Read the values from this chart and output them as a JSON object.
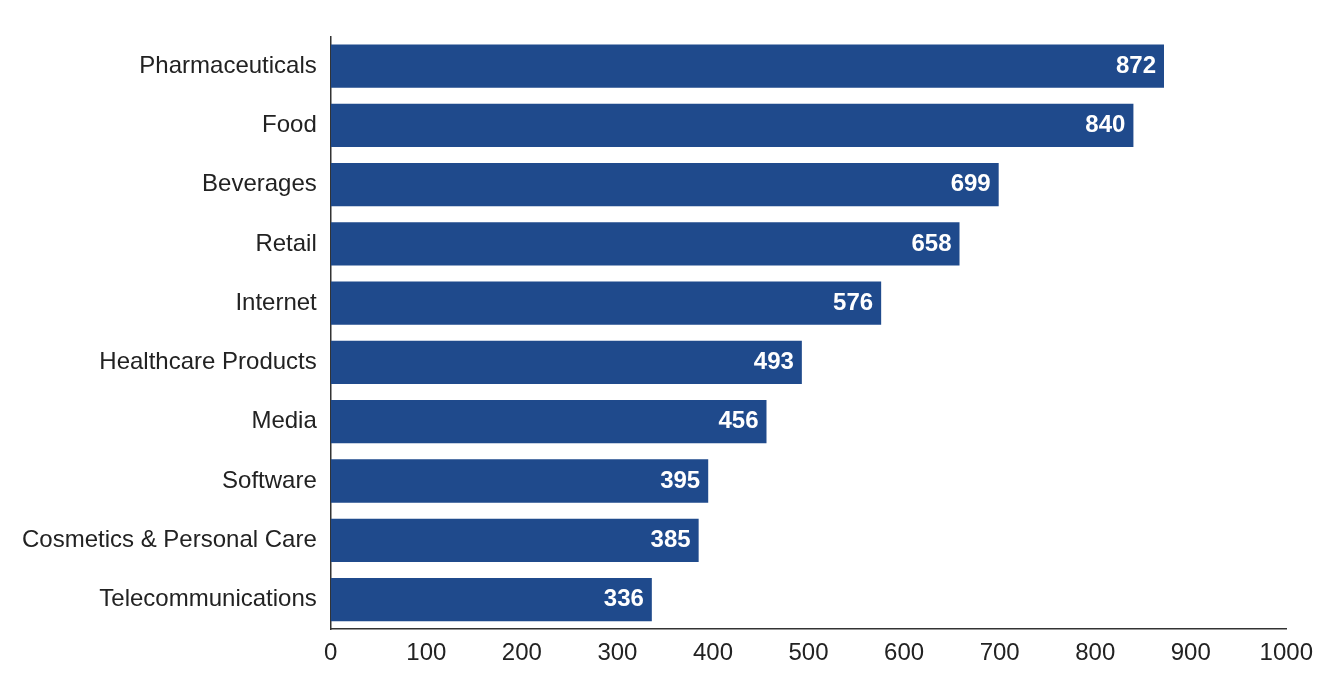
{
  "chart_data": {
    "type": "bar",
    "orientation": "horizontal",
    "categories": [
      "Pharmaceuticals",
      "Food",
      "Beverages",
      "Retail",
      "Internet",
      "Healthcare Products",
      "Media",
      "Software",
      "Cosmetics & Personal Care",
      "Telecommunications"
    ],
    "values": [
      872,
      840,
      699,
      658,
      576,
      493,
      456,
      395,
      385,
      336
    ],
    "color": "#1f4a8c",
    "xlim": [
      0,
      1000
    ],
    "xticks": [
      0,
      100,
      200,
      300,
      400,
      500,
      600,
      700,
      800,
      900,
      1000
    ],
    "data_labels": true,
    "grid": false,
    "legend": false
  }
}
